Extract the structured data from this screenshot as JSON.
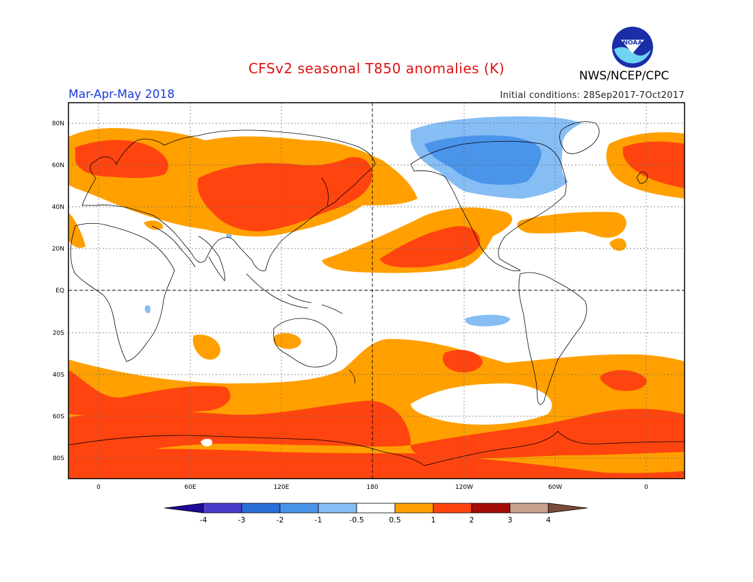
{
  "title": "CFSv2 seasonal T850 anomalies (K)",
  "agency": "NWS/NCEP/CPC",
  "season": "Mar-Apr-May 2018",
  "initial_conditions": "Initial conditions: 28Sep2017-7Oct2017",
  "logo_text": "NOAA",
  "lat_labels": [
    "80N",
    "60N",
    "40N",
    "20N",
    "EQ",
    "20S",
    "40S",
    "60S",
    "80S"
  ],
  "lon_labels": [
    "0",
    "60E",
    "120E",
    "180",
    "120W",
    "60W",
    "0"
  ],
  "colorbar": {
    "colors": [
      "#1e0a96",
      "#4a3cc8",
      "#2a6ed8",
      "#4a94ea",
      "#86bdf4",
      "#ffffff",
      "#ffa000",
      "#ff4410",
      "#a40c08",
      "#c8a08c",
      "#7a4a3a"
    ],
    "labels": [
      "-4",
      "-3",
      "-2",
      "-1",
      "-0.5",
      "0.5",
      "1",
      "2",
      "3",
      "4"
    ]
  },
  "colors": {
    "weak_warm": "#ffa000",
    "warm": "#ff4410",
    "weak_cold": "#86bdf4",
    "cold": "#4a94ea"
  }
}
